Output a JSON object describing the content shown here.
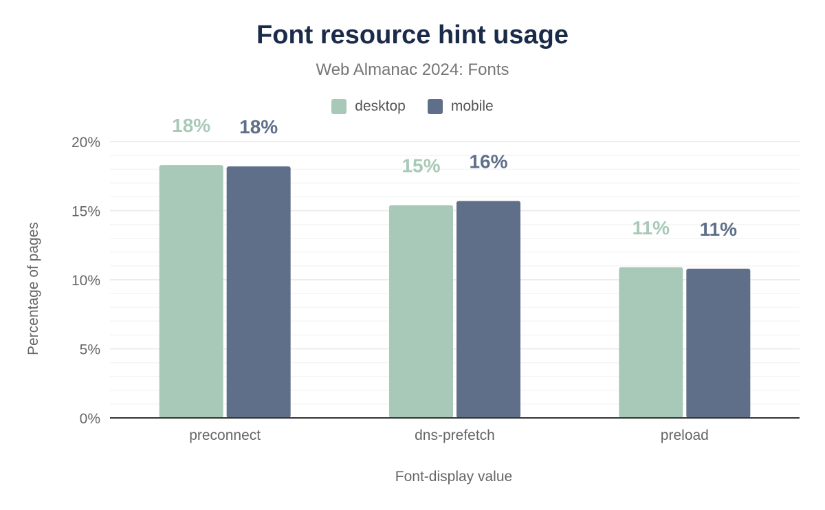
{
  "chart_data": {
    "type": "bar",
    "title": "Font resource hint usage",
    "subtitle": "Web Almanac 2024: Fonts",
    "xlabel": "Font-display value",
    "ylabel": "Percentage of pages",
    "categories": [
      "preconnect",
      "dns-prefetch",
      "preload"
    ],
    "series": [
      {
        "name": "desktop",
        "color": "#a8c9b8",
        "values": [
          18.3,
          15.4,
          10.9
        ],
        "labels": [
          "18%",
          "15%",
          "11%"
        ]
      },
      {
        "name": "mobile",
        "color": "#5f6f8a",
        "values": [
          18.2,
          15.7,
          10.8
        ],
        "labels": [
          "18%",
          "16%",
          "11%"
        ]
      }
    ],
    "ylim": [
      0,
      20
    ],
    "yticks": [
      0,
      5,
      10,
      15,
      20
    ],
    "ytick_labels": [
      "0%",
      "5%",
      "10%",
      "15%",
      "20%"
    ],
    "grid": true,
    "legend_position": "top-center"
  }
}
